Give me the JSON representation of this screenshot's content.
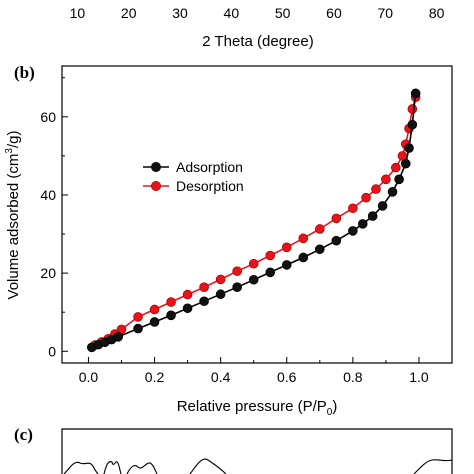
{
  "top_panel": {
    "tick_labels": [
      "10",
      "20",
      "30",
      "40",
      "50",
      "60",
      "70",
      "80"
    ],
    "tick_values": [
      10,
      20,
      30,
      40,
      50,
      60,
      70,
      80
    ],
    "xlim": [
      7,
      83
    ],
    "xlabel": "2 Theta (degree)"
  },
  "chart_data": {
    "type": "line",
    "panel_label": "(b)",
    "xlabel": "Relative pressure (P/P",
    "xlabel_sub": "0",
    "xlabel_end": ")",
    "ylabel_pre": "Volume adsorbed (cm",
    "ylabel_sup": "3",
    "ylabel_post": "/g)",
    "xlim": [
      -0.08,
      1.1
    ],
    "ylim": [
      -3,
      73
    ],
    "x_ticks": [
      0.0,
      0.2,
      0.4,
      0.6,
      0.8,
      1.0
    ],
    "x_tick_labels": [
      "0.0",
      "0.2",
      "0.4",
      "0.6",
      "0.8",
      "1.0"
    ],
    "y_ticks": [
      0,
      20,
      40,
      60
    ],
    "y_tick_labels": [
      "0",
      "20",
      "40",
      "60"
    ],
    "legend": {
      "placement": "center-left",
      "entries": [
        "Adsorption",
        "Desorption"
      ]
    },
    "series": [
      {
        "name": "Adsorption",
        "color": "#000000",
        "marker_fill": "#111111",
        "x": [
          0.01,
          0.03,
          0.05,
          0.07,
          0.09,
          0.15,
          0.2,
          0.25,
          0.3,
          0.35,
          0.4,
          0.45,
          0.5,
          0.55,
          0.6,
          0.65,
          0.7,
          0.75,
          0.8,
          0.83,
          0.86,
          0.89,
          0.92,
          0.94,
          0.96,
          0.97,
          0.98,
          0.99
        ],
        "y": [
          1.0,
          1.7,
          2.3,
          3.0,
          3.7,
          5.8,
          7.5,
          9.2,
          11.0,
          12.8,
          14.6,
          16.4,
          18.3,
          20.2,
          22.1,
          24.0,
          26.1,
          28.3,
          30.8,
          32.6,
          34.6,
          37.2,
          40.8,
          44.0,
          48.0,
          52.0,
          58.0,
          66.0
        ]
      },
      {
        "name": "Desorption",
        "color": "#e8141c",
        "marker_fill": "#e8141c",
        "x": [
          0.99,
          0.98,
          0.97,
          0.96,
          0.95,
          0.93,
          0.9,
          0.87,
          0.84,
          0.8,
          0.75,
          0.7,
          0.65,
          0.6,
          0.55,
          0.5,
          0.45,
          0.4,
          0.35,
          0.3,
          0.25,
          0.2,
          0.15,
          0.1,
          0.08,
          0.06,
          0.04,
          0.02
        ],
        "y": [
          65.0,
          62.0,
          57.0,
          53.0,
          50.0,
          47.0,
          44.0,
          41.5,
          39.3,
          36.6,
          34.0,
          31.3,
          28.9,
          26.6,
          24.5,
          22.4,
          20.5,
          18.4,
          16.4,
          14.5,
          12.6,
          10.7,
          8.8,
          5.6,
          4.4,
          3.2,
          2.4,
          1.6
        ]
      }
    ]
  },
  "bottom_panel": {
    "panel_label": "(c)"
  }
}
